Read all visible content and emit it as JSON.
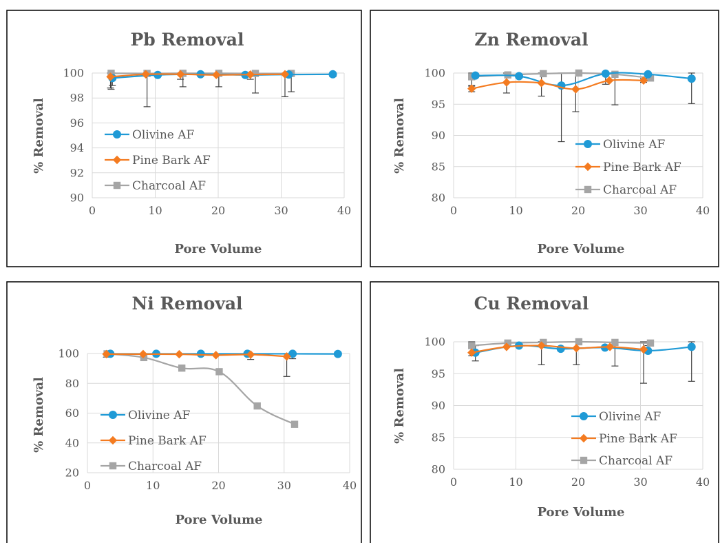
{
  "colors": {
    "olivine": "#1f9ad6",
    "pine": "#f47b20",
    "charcoal": "#a5a5a5",
    "grid": "#d9d9d9",
    "text": "#595959",
    "errorbar": "#404040"
  },
  "chart_data": [
    {
      "type": "line",
      "title": "Pb Removal",
      "xlabel": "Pore Volume",
      "ylabel": "% Removal",
      "xlim": [
        0,
        40
      ],
      "ylim": [
        90,
        100
      ],
      "xticks": [
        0,
        10,
        20,
        30,
        40
      ],
      "yticks": [
        90,
        92,
        94,
        96,
        98,
        100
      ],
      "grid": true,
      "legend_position": "lower-left",
      "series": [
        {
          "name": "Olivine AF",
          "color_key": "olivine",
          "marker": "circle",
          "points": [
            [
              3.2,
              99.6
            ],
            [
              10.4,
              99.85
            ],
            [
              17.2,
              99.9
            ],
            [
              24.3,
              99.85
            ],
            [
              31.2,
              99.88
            ],
            [
              38.2,
              99.9
            ]
          ],
          "errors": [
            [
              3.2,
              99.0,
              100.0
            ],
            [
              38.2,
              99.7,
              100.0
            ]
          ]
        },
        {
          "name": "Pine Bark AF",
          "color_key": "pine",
          "marker": "diamond",
          "points": [
            [
              2.9,
              99.7
            ],
            [
              8.5,
              99.9
            ],
            [
              14.0,
              99.9
            ],
            [
              19.7,
              99.85
            ],
            [
              25.1,
              99.88
            ],
            [
              30.6,
              99.9
            ]
          ],
          "errors": [
            [
              2.9,
              98.8,
              100.0
            ],
            [
              14.0,
              99.5,
              100.0
            ],
            [
              25.1,
              99.5,
              100.0
            ],
            [
              30.6,
              98.1,
              100.0
            ]
          ]
        },
        {
          "name": "Charcoal AF",
          "color_key": "charcoal",
          "marker": "square",
          "points": [
            [
              3.0,
              99.98
            ],
            [
              8.7,
              99.97
            ],
            [
              14.4,
              99.98
            ],
            [
              20.1,
              99.98
            ],
            [
              25.9,
              99.97
            ],
            [
              31.6,
              99.97
            ]
          ],
          "errors": [
            [
              3.0,
              98.7,
              100.0
            ],
            [
              8.7,
              97.3,
              100.0
            ],
            [
              14.4,
              98.9,
              100.0
            ],
            [
              20.1,
              98.9,
              100.0
            ],
            [
              25.9,
              98.4,
              100.0
            ],
            [
              31.6,
              98.5,
              100.0
            ]
          ]
        }
      ]
    },
    {
      "type": "line",
      "title": "Zn Removal",
      "xlabel": "Pore Volume",
      "ylabel": "% Removal",
      "xlim": [
        0,
        40
      ],
      "ylim": [
        80,
        100
      ],
      "xticks": [
        0,
        10,
        20,
        30,
        40
      ],
      "yticks": [
        80,
        85,
        90,
        95,
        100
      ],
      "grid": true,
      "legend_position": "lower-right",
      "series": [
        {
          "name": "Olivine AF",
          "color_key": "olivine",
          "marker": "circle",
          "points": [
            [
              3.5,
              99.6
            ],
            [
              10.5,
              99.5
            ],
            [
              17.3,
              98.0
            ],
            [
              24.4,
              99.9
            ],
            [
              31.2,
              99.8
            ],
            [
              38.2,
              99.1
            ]
          ],
          "errors": [
            [
              17.3,
              89.0,
              100.0
            ],
            [
              24.4,
              98.2,
              100.0
            ],
            [
              38.2,
              95.1,
              100.0
            ]
          ]
        },
        {
          "name": "Pine Bark AF",
          "color_key": "pine",
          "marker": "diamond",
          "points": [
            [
              2.9,
              97.5
            ],
            [
              8.5,
              98.5
            ],
            [
              14.1,
              98.4
            ],
            [
              19.6,
              97.4
            ],
            [
              25.0,
              98.8
            ],
            [
              30.5,
              98.8
            ]
          ],
          "errors": [
            [
              2.9,
              97.0,
              98.0
            ],
            [
              8.5,
              96.8,
              100.0
            ],
            [
              14.1,
              96.3,
              100.0
            ],
            [
              19.6,
              93.8,
              100.0
            ],
            [
              30.5,
              98.5,
              99.1
            ]
          ]
        },
        {
          "name": "Charcoal AF",
          "color_key": "charcoal",
          "marker": "square",
          "points": [
            [
              2.9,
              99.4
            ],
            [
              8.7,
              99.7
            ],
            [
              14.4,
              99.9
            ],
            [
              20.1,
              100.0
            ],
            [
              25.9,
              99.8
            ],
            [
              31.6,
              99.2
            ]
          ],
          "errors": [
            [
              2.9,
              97.9,
              100.0
            ],
            [
              25.9,
              94.9,
              100.0
            ]
          ]
        }
      ]
    },
    {
      "type": "line",
      "title": "Ni Removal",
      "xlabel": "Pore Volume",
      "ylabel": "% Removal",
      "xlim": [
        0,
        40
      ],
      "ylim": [
        20,
        100
      ],
      "xticks": [
        0,
        10,
        20,
        30,
        40
      ],
      "yticks": [
        20,
        40,
        60,
        80,
        100
      ],
      "grid": true,
      "legend_position": "lower-left",
      "series": [
        {
          "name": "Olivine AF",
          "color_key": "olivine",
          "marker": "circle",
          "points": [
            [
              3.5,
              99.8
            ],
            [
              10.5,
              99.8
            ],
            [
              17.3,
              99.8
            ],
            [
              24.4,
              99.8
            ],
            [
              31.3,
              99.8
            ],
            [
              38.2,
              99.7
            ]
          ],
          "errors": [
            [
              31.3,
              96.5,
              100.0
            ]
          ]
        },
        {
          "name": "Pine Bark AF",
          "color_key": "pine",
          "marker": "diamond",
          "points": [
            [
              2.9,
              99.6
            ],
            [
              8.5,
              99.6
            ],
            [
              14.0,
              99.5
            ],
            [
              19.6,
              98.9
            ],
            [
              24.9,
              99.3
            ],
            [
              30.4,
              98.0
            ]
          ],
          "errors": [
            [
              2.9,
              97.5,
              100.0
            ],
            [
              24.9,
              96.0,
              100.0
            ],
            [
              30.4,
              84.6,
              100.0
            ]
          ]
        },
        {
          "name": "Charcoal AF",
          "color_key": "charcoal",
          "marker": "square",
          "points": [
            [
              3.0,
              99.8
            ],
            [
              8.6,
              97.3
            ],
            [
              14.4,
              90.2
            ],
            [
              20.1,
              87.8
            ],
            [
              25.9,
              64.8
            ],
            [
              31.6,
              52.5
            ]
          ],
          "errors": []
        }
      ]
    },
    {
      "type": "line",
      "title": "Cu Removal",
      "xlabel": "Pore Volume",
      "ylabel": "% Removal",
      "xlim": [
        0,
        40
      ],
      "ylim": [
        80,
        100
      ],
      "xticks": [
        0,
        10,
        20,
        30,
        40
      ],
      "yticks": [
        80,
        85,
        90,
        95,
        100
      ],
      "grid": true,
      "legend_position": "lower-right",
      "series": [
        {
          "name": "Olivine AF",
          "color_key": "olivine",
          "marker": "circle",
          "points": [
            [
              3.5,
              98.3
            ],
            [
              10.5,
              99.4
            ],
            [
              17.2,
              98.9
            ],
            [
              24.3,
              99.1
            ],
            [
              31.2,
              98.6
            ],
            [
              38.2,
              99.2
            ]
          ],
          "errors": [
            [
              3.5,
              97.0,
              99.4
            ],
            [
              31.2,
              98.2,
              99.4
            ],
            [
              38.2,
              93.8,
              100.0
            ]
          ]
        },
        {
          "name": "Pine Bark AF",
          "color_key": "pine",
          "marker": "diamond",
          "points": [
            [
              2.9,
              98.3
            ],
            [
              8.5,
              99.2
            ],
            [
              14.1,
              99.4
            ],
            [
              19.7,
              99.0
            ],
            [
              25.1,
              99.2
            ],
            [
              30.5,
              98.8
            ]
          ],
          "errors": [
            [
              14.1,
              96.4,
              100.0
            ],
            [
              19.7,
              96.4,
              100.0
            ],
            [
              30.5,
              93.5,
              100.0
            ]
          ]
        },
        {
          "name": "Charcoal AF",
          "color_key": "charcoal",
          "marker": "square",
          "points": [
            [
              2.9,
              99.4
            ],
            [
              8.7,
              99.8
            ],
            [
              14.4,
              99.9
            ],
            [
              20.1,
              100.0
            ],
            [
              25.9,
              99.9
            ],
            [
              31.6,
              99.8
            ]
          ],
          "errors": [
            [
              2.9,
              97.8,
              100.0
            ],
            [
              25.9,
              96.2,
              100.0
            ]
          ]
        }
      ]
    }
  ]
}
